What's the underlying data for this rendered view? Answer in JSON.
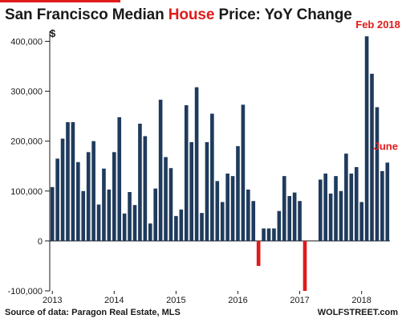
{
  "title": {
    "prefix": "San Francisco Median ",
    "highlight": "House",
    "suffix": " Price: YoY Change"
  },
  "colors": {
    "positive": "#1f3b5c",
    "negative": "#e01b1b",
    "accent": "#e01b1b",
    "text": "#1a1a1a"
  },
  "chart_data": {
    "type": "bar",
    "title": "San Francisco Median House Price: YoY Change",
    "ylabel": "$",
    "ylim": [
      -100000,
      420000
    ],
    "yticks": [
      -100000,
      0,
      100000,
      200000,
      300000,
      400000
    ],
    "ytick_labels": [
      "-100,000",
      "0",
      "100,000",
      "200,000",
      "300,000",
      "400,000"
    ],
    "xtick_labels": [
      "2013",
      "2014",
      "2015",
      "2016",
      "2017",
      "2018"
    ],
    "x_start_year": 2013,
    "grid": false,
    "values": [
      108000,
      165000,
      205000,
      238000,
      238000,
      158000,
      100000,
      178000,
      200000,
      73000,
      145000,
      103000,
      178000,
      248000,
      55000,
      98000,
      72000,
      235000,
      210000,
      35000,
      105000,
      283000,
      168000,
      146000,
      50000,
      63000,
      272000,
      198000,
      308000,
      56000,
      198000,
      255000,
      120000,
      78000,
      135000,
      130000,
      190000,
      273000,
      103000,
      80000,
      -50000,
      25000,
      25000,
      25000,
      60000,
      130000,
      90000,
      97000,
      80000,
      -100000,
      0,
      0,
      123000,
      135000,
      95000,
      130000,
      100000,
      175000,
      135000,
      148000,
      78000,
      410000,
      335000,
      268000,
      140000,
      157000
    ],
    "annotations": [
      {
        "text": "Feb 2018",
        "index": 61
      },
      {
        "text": "June",
        "index": 65
      }
    ]
  },
  "footer": {
    "source": "Source of data: Paragon Real Estate, MLS",
    "brand": "WOLFSTREET.com"
  }
}
